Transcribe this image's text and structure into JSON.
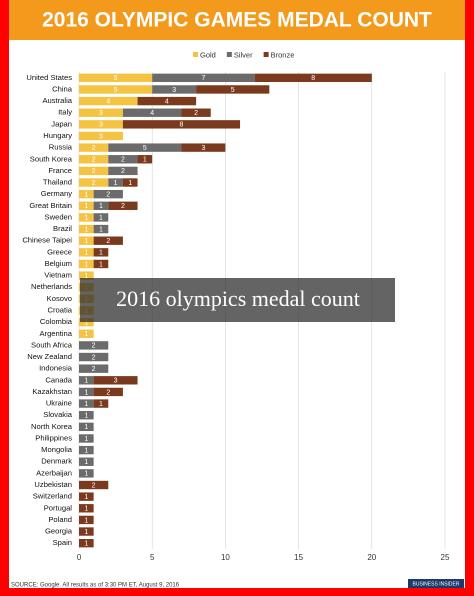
{
  "chart_data": {
    "type": "bar",
    "orientation": "horizontal",
    "stacked": true,
    "title": "2016 OLYMPIC GAMES MEDAL COUNT",
    "categories": [
      "United States",
      "China",
      "Australia",
      "Italy",
      "Japan",
      "Hungary",
      "Russia",
      "South Korea",
      "France",
      "Thailand",
      "Germany",
      "Great Britain",
      "Sweden",
      "Brazil",
      "Chinese Taipei",
      "Greece",
      "Belgium",
      "Vietnam",
      "Netherlands",
      "Kosovo",
      "Croatia",
      "Colombia",
      "Argentina",
      "South Africa",
      "New Zealand",
      "Indonesia",
      "Canada",
      "Kazakhstan",
      "Ukraine",
      "Slovakia",
      "North Korea",
      "Philippines",
      "Mongolia",
      "Denmark",
      "Azerbaijan",
      "Uzbekistan",
      "Switzerland",
      "Portugal",
      "Poland",
      "Georgia",
      "Spain"
    ],
    "series": [
      {
        "name": "Gold",
        "color": "#f5c342",
        "values": [
          5,
          5,
          4,
          3,
          3,
          3,
          2,
          2,
          2,
          2,
          1,
          1,
          1,
          1,
          1,
          1,
          1,
          1,
          1,
          1,
          1,
          1,
          1,
          0,
          0,
          0,
          0,
          0,
          0,
          0,
          0,
          0,
          0,
          0,
          0,
          0,
          0,
          0,
          0,
          0,
          0
        ]
      },
      {
        "name": "Silver",
        "color": "#6b6b6b",
        "values": [
          7,
          3,
          0,
          4,
          0,
          0,
          5,
          2,
          2,
          1,
          2,
          1,
          1,
          1,
          0,
          0,
          0,
          0,
          0,
          0,
          0,
          0,
          0,
          2,
          2,
          2,
          1,
          1,
          1,
          1,
          1,
          1,
          1,
          1,
          1,
          0,
          0,
          0,
          0,
          0,
          0
        ]
      },
      {
        "name": "Bronze",
        "color": "#7a3a1d",
        "values": [
          8,
          5,
          4,
          2,
          8,
          0,
          3,
          1,
          0,
          1,
          0,
          2,
          0,
          0,
          2,
          1,
          1,
          0,
          0,
          0,
          0,
          0,
          0,
          0,
          0,
          0,
          3,
          2,
          1,
          0,
          0,
          0,
          0,
          0,
          0,
          2,
          1,
          1,
          1,
          1,
          1
        ]
      }
    ],
    "xlim": [
      0,
      25
    ],
    "xticks": [
      0,
      5,
      10,
      15,
      20,
      25
    ],
    "grid": true,
    "legend": "top",
    "source": "SOURCE: Google. All results as of 3:30 PM ET, August 9, 2016",
    "logo": "BUSINESS INSIDER"
  },
  "overlay_caption": "2016 olympics medal count"
}
